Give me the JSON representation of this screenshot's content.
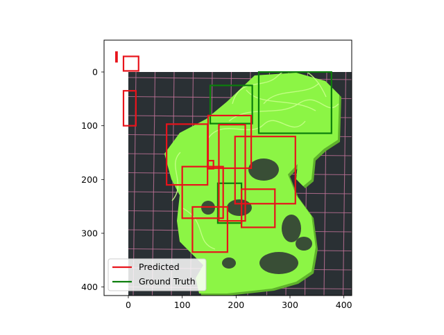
{
  "figure": {
    "x_ticks": [
      "0",
      "100",
      "200",
      "300",
      "400"
    ],
    "y_ticks": [
      "0",
      "100",
      "200",
      "300",
      "400"
    ],
    "axis_limits": {
      "x": [
        -45,
        420
      ],
      "y": [
        415,
        -60
      ]
    }
  },
  "photo": {
    "subject": "neon green 3D print failure (spaghetti) on dark cutting mat with pink grid",
    "colors": {
      "background": "#2a3034",
      "grid": "#c2749a",
      "filament": "#8cf545",
      "filament_shadow": "#5fb12c"
    }
  },
  "boxes": {
    "predicted": [
      {
        "x0": -23,
        "y0": -37,
        "x1": -21,
        "y1": -19
      },
      {
        "x0": -9,
        "y0": -29,
        "x1": 19,
        "y1": -2
      },
      {
        "x0": -9,
        "y0": 35,
        "x1": 14,
        "y1": 100
      },
      {
        "x0": 71,
        "y0": 97,
        "x1": 147,
        "y1": 210
      },
      {
        "x0": 147,
        "y0": 165,
        "x1": 158,
        "y1": 180
      },
      {
        "x0": 100,
        "y0": 176,
        "x1": 176,
        "y1": 272
      },
      {
        "x0": 168,
        "y0": 98,
        "x1": 217,
        "y1": 277
      },
      {
        "x0": 148,
        "y0": 81,
        "x1": 228,
        "y1": 179
      },
      {
        "x0": 198,
        "y0": 120,
        "x1": 310,
        "y1": 245
      },
      {
        "x0": 210,
        "y0": 218,
        "x1": 272,
        "y1": 289
      },
      {
        "x0": 119,
        "y0": 251,
        "x1": 184,
        "y1": 335
      }
    ],
    "ground_truth": [
      {
        "x0": 152,
        "y0": 25,
        "x1": 230,
        "y1": 96
      },
      {
        "x0": 242,
        "y0": 0,
        "x1": 377,
        "y1": 114
      },
      {
        "x0": 166,
        "y0": 207,
        "x1": 210,
        "y1": 281
      }
    ],
    "colors": {
      "predicted": "#e8131b",
      "ground_truth": "#0b7e0b"
    }
  },
  "legend": {
    "placement": "lower-left",
    "entries": [
      {
        "label": "Predicted",
        "color": "#e8131b"
      },
      {
        "label": "Ground Truth",
        "color": "#0b7e0b"
      }
    ]
  }
}
